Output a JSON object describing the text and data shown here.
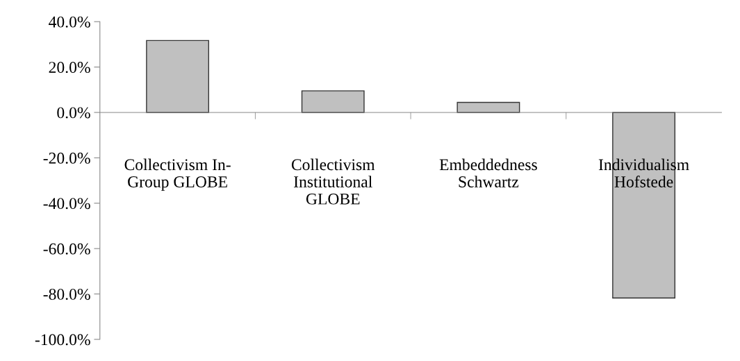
{
  "chart_data": {
    "type": "bar",
    "categories": [
      "Collectivism In-\nGroup GLOBE",
      "Collectivism\nInstitutional\nGLOBE",
      "Embeddedness\nSchwartz",
      "Individualism\nHofstede"
    ],
    "values": [
      31.7,
      9.5,
      4.4,
      -81.8
    ],
    "color": "#c0c0c0",
    "ylim": [
      -100,
      40
    ],
    "yticks": [
      {
        "value": -100,
        "label": "-100.0%"
      },
      {
        "value": -80,
        "label": "-80.0%"
      },
      {
        "value": -60,
        "label": "-60.0%"
      },
      {
        "value": -40,
        "label": "-40.0%"
      },
      {
        "value": -20,
        "label": "-20.0%"
      },
      {
        "value": 0,
        "label": "0.0%"
      },
      {
        "value": 20,
        "label": "20.0%"
      },
      {
        "value": 40,
        "label": "40.0%"
      }
    ],
    "legend": false
  }
}
